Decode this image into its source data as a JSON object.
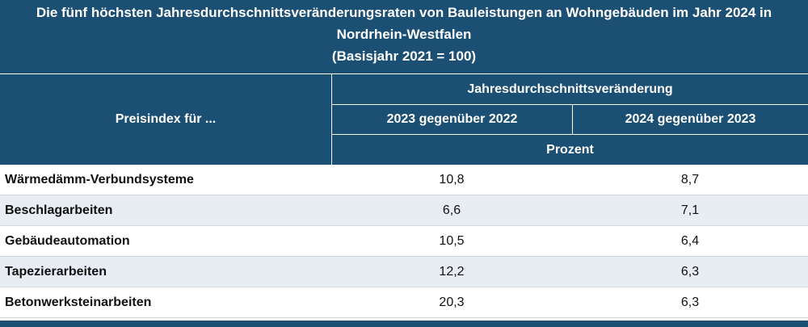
{
  "title": {
    "line1": "Die fünf höchsten Jahresdurchschnittsveränderungsraten von Bauleistungen an Wohngebäuden im Jahr 2024 in",
    "line2": "Nordrhein-Westfalen",
    "line3": "(Basisjahr 2021 = 100)"
  },
  "header": {
    "index_label": "Preisindex für ...",
    "group_label": "Jahresdurchschnittsveränderung",
    "col1": "2023 gegenüber 2022",
    "col2": "2024 gegenüber 2023",
    "unit": "Prozent"
  },
  "rows": [
    {
      "label": "Wärmedämm-Verbundsysteme",
      "v1": "10,8",
      "v2": "8,7"
    },
    {
      "label": "Beschlagarbeiten",
      "v1": "6,6",
      "v2": "7,1"
    },
    {
      "label": "Gebäudeautomation",
      "v1": "10,5",
      "v2": "6,4"
    },
    {
      "label": "Tapezierarbeiten",
      "v1": "12,2",
      "v2": "6,3"
    },
    {
      "label": "Betonwerksteinarbeiten",
      "v1": "20,3",
      "v2": "6,3"
    }
  ],
  "colors": {
    "header_bg": "#1b4f74",
    "alt_row_bg": "#e8ecf3"
  }
}
